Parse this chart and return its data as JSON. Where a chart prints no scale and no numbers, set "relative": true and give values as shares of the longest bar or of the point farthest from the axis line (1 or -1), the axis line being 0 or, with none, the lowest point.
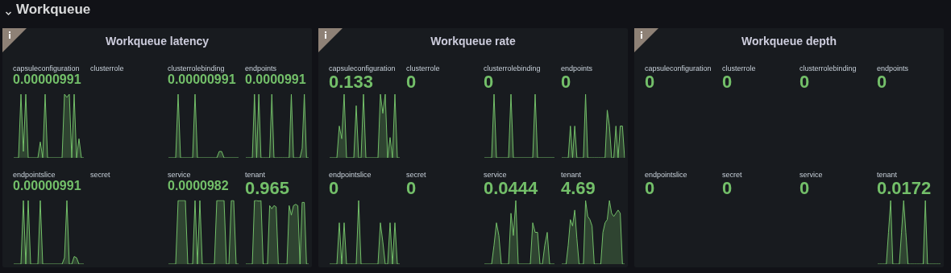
{
  "chart_data": [
    {
      "type": "other",
      "title": "Workqueue"
    },
    {
      "type": "other",
      "title": "Workqueue latency"
    },
    {
      "type": "area",
      "title": "capsuleconfiguration",
      "annotations": [
        "0.00000991"
      ],
      "relative": true,
      "color": "#73bf69",
      "categories": [
        null,
        null,
        null,
        null,
        null,
        null,
        null,
        null,
        null,
        null,
        null,
        null,
        null,
        null,
        null,
        null,
        null,
        null,
        null,
        null,
        null,
        null,
        null,
        null,
        null,
        null,
        null,
        null,
        null,
        null
      ],
      "values": [
        0,
        0,
        0,
        1,
        0.1,
        1,
        0,
        0,
        0,
        0,
        0,
        0.25,
        0,
        1,
        0,
        0,
        0,
        0,
        0,
        0,
        0,
        1,
        0.95,
        1,
        0,
        1,
        0,
        0.3,
        0,
        0
      ]
    },
    {
      "type": "other",
      "title": "clusterrole"
    },
    {
      "type": "area",
      "title": "clusterrolebinding",
      "annotations": [
        "0.00000991"
      ],
      "relative": true,
      "color": "#73bf69",
      "categories": [
        null,
        null,
        null,
        null,
        null,
        null,
        null,
        null,
        null,
        null,
        null,
        null,
        null,
        null,
        null,
        null,
        null,
        null,
        null,
        null,
        null,
        null,
        null,
        null,
        null,
        null,
        null,
        null,
        null,
        null
      ],
      "values": [
        0,
        0,
        0,
        0,
        1,
        0,
        0,
        0,
        0,
        0,
        0,
        1,
        0,
        0,
        0,
        0,
        0,
        0,
        0,
        0,
        0,
        0.1,
        0.1,
        0,
        0,
        0,
        0,
        0,
        0,
        0
      ]
    },
    {
      "type": "area",
      "title": "endpoints",
      "annotations": [
        "0.0000991"
      ],
      "relative": true,
      "color": "#73bf69",
      "categories": [
        null,
        null,
        null,
        null,
        null,
        null,
        null,
        null,
        null,
        null,
        null,
        null,
        null,
        null,
        null,
        null,
        null,
        null,
        null,
        null,
        null,
        null,
        null,
        null,
        null,
        null,
        null,
        null,
        null,
        null
      ],
      "values": [
        0,
        0,
        0,
        0,
        1,
        0,
        1,
        0,
        0,
        0,
        0,
        0,
        1,
        0,
        0,
        0,
        0,
        0,
        0,
        0,
        0,
        1,
        0,
        0,
        0,
        0,
        0.15,
        1,
        0,
        0
      ]
    },
    {
      "type": "area",
      "title": "endpointslice",
      "annotations": [
        "0.00000991"
      ],
      "relative": true,
      "color": "#73bf69",
      "categories": [
        null,
        null,
        null,
        null,
        null,
        null,
        null,
        null,
        null,
        null,
        null,
        null,
        null,
        null,
        null,
        null,
        null,
        null,
        null,
        null,
        null,
        null,
        null,
        null,
        null,
        null,
        null,
        null,
        null,
        null
      ],
      "values": [
        0,
        0,
        0,
        0,
        1,
        0,
        1,
        0,
        0,
        0,
        0,
        1,
        0,
        0,
        0,
        0,
        0,
        0,
        0,
        0,
        0,
        0.1,
        1,
        0,
        0,
        0.12,
        0.1,
        0,
        0,
        0
      ]
    },
    {
      "type": "other",
      "title": "secret"
    },
    {
      "type": "area",
      "title": "service",
      "annotations": [
        "0.0000982"
      ],
      "relative": true,
      "color": "#73bf69",
      "categories": [
        null,
        null,
        null,
        null,
        null,
        null,
        null,
        null,
        null,
        null,
        null,
        null,
        null,
        null,
        null,
        null,
        null,
        null,
        null,
        null,
        null,
        null,
        null,
        null,
        null,
        null,
        null,
        null,
        null,
        null
      ],
      "values": [
        0,
        0,
        0,
        0,
        1,
        1,
        1,
        1,
        0,
        0,
        0,
        1,
        0,
        1,
        0,
        0,
        0,
        0,
        0,
        0,
        1,
        1,
        1,
        1,
        0,
        0,
        1,
        1,
        0,
        0
      ]
    },
    {
      "type": "area",
      "title": "tenant",
      "annotations": [
        "0.965"
      ],
      "relative": true,
      "color": "#73bf69",
      "categories": [
        null,
        null,
        null,
        null,
        null,
        null,
        null,
        null,
        null,
        null,
        null,
        null,
        null,
        null,
        null,
        null,
        null,
        null,
        null,
        null,
        null,
        null,
        null,
        null,
        null,
        null,
        null,
        null,
        null,
        null
      ],
      "values": [
        0,
        0,
        0,
        0,
        1,
        1,
        0.99,
        1,
        0,
        0,
        0,
        0.92,
        0.87,
        0.92,
        0.9,
        0,
        0,
        0,
        0,
        0,
        0.92,
        0.77,
        0.92,
        0.94,
        0.92,
        0,
        0.97,
        0.97,
        0,
        0
      ]
    },
    {
      "type": "other",
      "title": "Workqueue rate"
    },
    {
      "type": "area",
      "title": "capsuleconfiguration",
      "annotations": [
        "0.133"
      ],
      "relative": true,
      "color": "#73bf69",
      "categories": [
        null,
        null,
        null,
        null,
        null,
        null,
        null,
        null,
        null,
        null,
        null,
        null,
        null,
        null,
        null,
        null,
        null,
        null,
        null,
        null,
        null,
        null,
        null,
        null,
        null,
        null,
        null,
        null,
        null,
        null
      ],
      "values": [
        0,
        0,
        0,
        0,
        0.5,
        0.3,
        1,
        0,
        0,
        0,
        0,
        0.82,
        0,
        0,
        1,
        0,
        0,
        0,
        0,
        0,
        0,
        1,
        0.7,
        1,
        0,
        0.32,
        0,
        1,
        0,
        0
      ]
    },
    {
      "type": "other",
      "title": "clusterrole",
      "annotations": [
        "0"
      ],
      "color": "#73bf69"
    },
    {
      "type": "area",
      "title": "clusterrolebinding",
      "annotations": [
        "0"
      ],
      "relative": true,
      "color": "#73bf69",
      "categories": [
        null,
        null,
        null,
        null,
        null,
        null,
        null,
        null,
        null,
        null,
        null,
        null,
        null,
        null,
        null,
        null,
        null,
        null,
        null,
        null,
        null,
        null,
        null,
        null,
        null,
        null,
        null,
        null,
        null,
        null
      ],
      "values": [
        0,
        0,
        0,
        0,
        1,
        0,
        0,
        0,
        0,
        0,
        0,
        1,
        0,
        0,
        0,
        0,
        0,
        0,
        0,
        0,
        0,
        1,
        0,
        0,
        0,
        0,
        0,
        0,
        0,
        0
      ]
    },
    {
      "type": "area",
      "title": "endpoints",
      "annotations": [
        "0"
      ],
      "relative": true,
      "color": "#73bf69",
      "categories": [
        null,
        null,
        null,
        null,
        null,
        null,
        null,
        null,
        null,
        null,
        null,
        null,
        null,
        null,
        null,
        null,
        null,
        null,
        null,
        null,
        null,
        null,
        null,
        null,
        null,
        null,
        null,
        null,
        null,
        null
      ],
      "values": [
        0,
        0,
        0,
        0,
        0.5,
        0,
        0.5,
        0,
        0,
        0,
        0,
        1,
        0,
        0,
        0,
        0,
        0,
        0,
        0,
        0,
        0,
        0.75,
        0.5,
        0,
        0,
        0.5,
        0,
        0.5,
        0.5,
        0
      ]
    },
    {
      "type": "area",
      "title": "endpointslice",
      "annotations": [
        "0"
      ],
      "relative": true,
      "color": "#73bf69",
      "categories": [
        null,
        null,
        null,
        null,
        null,
        null,
        null,
        null,
        null,
        null,
        null,
        null,
        null,
        null,
        null,
        null,
        null,
        null,
        null,
        null,
        null,
        null,
        null,
        null,
        null,
        null,
        null,
        null,
        null,
        null
      ],
      "values": [
        0,
        0,
        0,
        0,
        0.65,
        0,
        0.65,
        0,
        0,
        0,
        0,
        0,
        1,
        0,
        0,
        0,
        0,
        0,
        0,
        0,
        0,
        0.65,
        0.35,
        0,
        0,
        0.65,
        0,
        0.65,
        0,
        0
      ]
    },
    {
      "type": "other",
      "title": "secret",
      "annotations": [
        "0"
      ],
      "color": "#73bf69"
    },
    {
      "type": "area",
      "title": "service",
      "annotations": [
        "0.0444"
      ],
      "relative": true,
      "color": "#73bf69",
      "categories": [
        null,
        null,
        null,
        null,
        null,
        null,
        null,
        null,
        null,
        null,
        null,
        null,
        null,
        null,
        null,
        null,
        null,
        null,
        null,
        null,
        null,
        null,
        null,
        null,
        null,
        null,
        null,
        null,
        null,
        null
      ],
      "values": [
        0,
        0,
        0,
        0,
        0.3,
        0.65,
        0.45,
        0,
        0,
        0,
        0,
        0.8,
        0.45,
        1,
        0,
        0,
        0,
        0,
        0,
        0,
        0.65,
        0.5,
        0.5,
        0,
        0,
        0.3,
        0.5,
        0,
        0,
        0
      ]
    },
    {
      "type": "area",
      "title": "tenant",
      "annotations": [
        "4.69"
      ],
      "relative": true,
      "color": "#73bf69",
      "categories": [
        null,
        null,
        null,
        null,
        null,
        null,
        null,
        null,
        null,
        null,
        null,
        null,
        null,
        null,
        null,
        null,
        null,
        null,
        null,
        null,
        null,
        null,
        null,
        null,
        null,
        null,
        null,
        null,
        null,
        null
      ],
      "values": [
        0,
        0,
        0,
        0.3,
        0.7,
        0.6,
        0.85,
        0.4,
        0,
        0,
        0,
        1,
        0.75,
        0.7,
        0.6,
        0,
        0,
        0,
        0,
        0.5,
        0.65,
        0.7,
        1,
        0.8,
        0.75,
        0.8,
        0.85,
        0.8,
        0,
        0
      ]
    },
    {
      "type": "other",
      "title": "Workqueue depth"
    },
    {
      "type": "other",
      "title": "capsuleconfiguration",
      "annotations": [
        "0"
      ],
      "color": "#73bf69"
    },
    {
      "type": "other",
      "title": "clusterrole",
      "annotations": [
        "0"
      ],
      "color": "#73bf69"
    },
    {
      "type": "other",
      "title": "clusterrolebinding",
      "annotations": [
        "0"
      ],
      "color": "#73bf69"
    },
    {
      "type": "other",
      "title": "endpoints",
      "annotations": [
        "0"
      ],
      "color": "#73bf69"
    },
    {
      "type": "other",
      "title": "endpointslice",
      "annotations": [
        "0"
      ],
      "color": "#73bf69"
    },
    {
      "type": "other",
      "title": "secret",
      "annotations": [
        "0"
      ],
      "color": "#73bf69"
    },
    {
      "type": "other",
      "title": "service",
      "annotations": [
        "0"
      ],
      "color": "#73bf69"
    },
    {
      "type": "area",
      "title": "tenant",
      "annotations": [
        "0.0172"
      ],
      "relative": true,
      "color": "#73bf69",
      "categories": [
        null,
        null,
        null,
        null,
        null,
        null,
        null,
        null,
        null,
        null,
        null,
        null,
        null,
        null,
        null,
        null,
        null,
        null,
        null,
        null,
        null,
        null,
        null,
        null,
        null,
        null,
        null,
        null,
        null,
        null
      ],
      "values": [
        0,
        0,
        0,
        0,
        0,
        0.5,
        1,
        0,
        0,
        0,
        0,
        0.5,
        1,
        0.5,
        0,
        0,
        0,
        0,
        0,
        0,
        0,
        0,
        1,
        0,
        0,
        0,
        0,
        0,
        0,
        0
      ]
    }
  ]
}
